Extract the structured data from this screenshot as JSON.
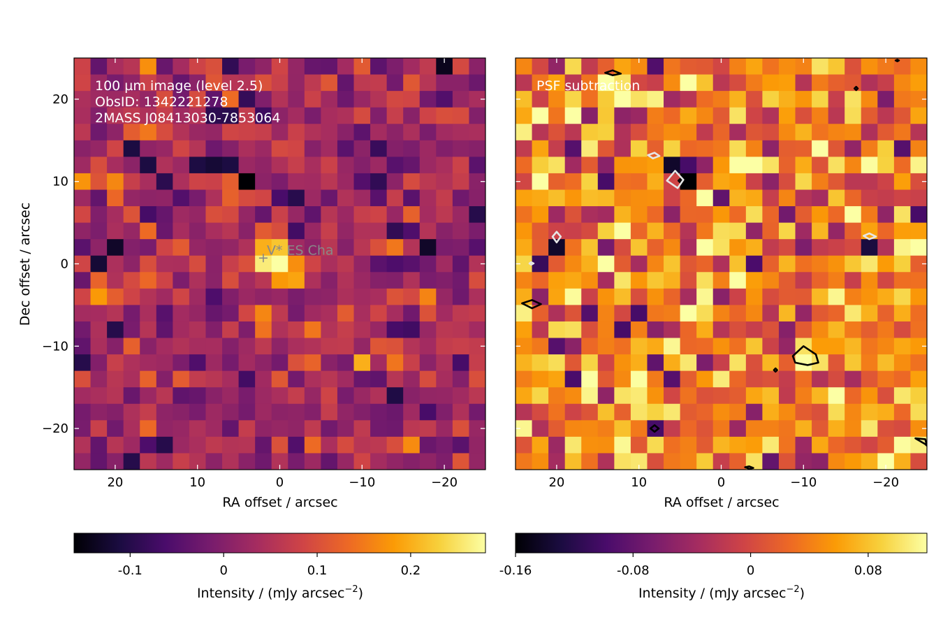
{
  "colormap": {
    "name": "inferno",
    "stops": [
      "#000004",
      "#1b0c41",
      "#4a0c6b",
      "#781c6d",
      "#a52c60",
      "#cf4446",
      "#ed6925",
      "#fb9b06",
      "#f7d13d",
      "#fcffa4"
    ]
  },
  "chart_data": [
    {
      "type": "heatmap",
      "panel": "left",
      "xlabel": "RA offset / arcsec",
      "ylabel": "Dec offset / arcsec",
      "xlim": [
        25,
        -25
      ],
      "ylim": [
        -25,
        25
      ],
      "xticks": [
        20,
        10,
        0,
        -10,
        -20
      ],
      "yticks": [
        -20,
        -10,
        0,
        10,
        20
      ],
      "xtick_labels": [
        "20",
        "10",
        "0",
        "−10",
        "−20"
      ],
      "ytick_labels": [
        "−20",
        "−10",
        "0",
        "10",
        "20"
      ],
      "annotation_lines": [
        "100 µm image (level 2.5)",
        "ObsID: 1342221278",
        "2MASS J08413030-7853064"
      ],
      "source_marker": {
        "label": "V* ES Cha",
        "ra": 2,
        "dec": 0.7
      },
      "pixel_size_arcsec": 2.0,
      "grid_cols": 25,
      "grid_rows": 25,
      "vmin": -0.16,
      "vmax": 0.28,
      "noise_mean": 0.03,
      "noise_sigma": 0.05,
      "random_seed": 1342221278,
      "hot_pixels": [
        {
          "ra": 0,
          "dec": 0,
          "value": 0.28
        },
        {
          "ra": 2,
          "dec": 0,
          "value": 0.26
        },
        {
          "ra": 0,
          "dec": 2,
          "value": 0.22
        },
        {
          "ra": 2,
          "dec": 2,
          "value": 0.2
        },
        {
          "ra": -2,
          "dec": 0,
          "value": 0.17
        },
        {
          "ra": -2,
          "dec": -2,
          "value": 0.19
        },
        {
          "ra": 0,
          "dec": -2,
          "value": 0.18
        },
        {
          "ra": 4,
          "dec": 0,
          "value": 0.1
        },
        {
          "ra": -10,
          "dec": -12,
          "value": 0.2
        },
        {
          "ra": 22,
          "dec": -4,
          "value": 0.18
        },
        {
          "ra": -18,
          "dec": -4,
          "value": 0.16
        }
      ],
      "cold_pixels": [
        {
          "ra": 5,
          "dec": 10,
          "value": -0.16
        },
        {
          "ra": 8,
          "dec": 13,
          "value": -0.12
        },
        {
          "ra": 6,
          "dec": 12,
          "value": -0.11
        },
        {
          "ra": 20,
          "dec": 3,
          "value": -0.13
        },
        {
          "ra": -17,
          "dec": 3,
          "value": -0.13
        },
        {
          "ra": 22,
          "dec": 0,
          "value": -0.12
        },
        {
          "ra": -20,
          "dec": 24,
          "value": -0.14
        },
        {
          "ra": 18,
          "dec": 15,
          "value": -0.11
        },
        {
          "ra": 16,
          "dec": 12,
          "value": -0.11
        },
        {
          "ra": 24,
          "dec": -11,
          "value": -0.1
        },
        {
          "ra": 20,
          "dec": -8,
          "value": -0.1
        },
        {
          "ra": 14,
          "dec": -21,
          "value": -0.1
        },
        {
          "ra": 18,
          "dec": -24,
          "value": -0.1
        },
        {
          "ra": -24,
          "dec": 7,
          "value": -0.1
        }
      ],
      "colorbar": {
        "label_main": "Intensity / (mJy arcsec",
        "label_exp": "−2",
        "label_close": ")",
        "ticks": [
          -0.1,
          0,
          0.1,
          0.2
        ],
        "tick_labels": [
          "-0.1",
          "0",
          "0.1",
          "0.2"
        ]
      }
    },
    {
      "type": "heatmap",
      "panel": "right",
      "xlabel": "RA offset / arcsec",
      "xlim": [
        25,
        -25
      ],
      "ylim": [
        -25,
        25
      ],
      "xticks": [
        20,
        10,
        0,
        -10,
        -20
      ],
      "yticks": [
        -20,
        -10,
        0,
        10,
        20
      ],
      "xtick_labels": [
        "20",
        "10",
        "0",
        "−10",
        "−20"
      ],
      "annotation_lines": [
        "PSF subtraction"
      ],
      "pixel_size_arcsec": 2.0,
      "grid_cols": 25,
      "grid_rows": 25,
      "vmin": -0.16,
      "vmax": 0.12,
      "noise_mean": 0.035,
      "noise_sigma": 0.045,
      "random_seed": 78530640,
      "hot_pixels": [
        {
          "ra": -10,
          "dec": -12,
          "value": 0.12
        },
        {
          "ra": -12,
          "dec": -12,
          "value": 0.1
        },
        {
          "ra": -10,
          "dec": -10,
          "value": 0.1
        },
        {
          "ra": 24,
          "dec": -5,
          "value": 0.11
        },
        {
          "ra": -24,
          "dec": -22,
          "value": 0.11
        },
        {
          "ra": 13,
          "dec": 23,
          "value": 0.1
        },
        {
          "ra": -16,
          "dec": 21,
          "value": 0.1
        },
        {
          "ra": 10,
          "dec": 20,
          "value": 0.1
        },
        {
          "ra": -4,
          "dec": -24,
          "value": 0.1
        },
        {
          "ra": 12,
          "dec": -24,
          "value": 0.1
        },
        {
          "ra": 8,
          "dec": -18,
          "value": 0.09
        },
        {
          "ra": 16,
          "dec": 10,
          "value": 0.09
        },
        {
          "ra": -22,
          "dec": 6,
          "value": 0.1
        },
        {
          "ra": 8,
          "dec": -20,
          "value": 0.1
        }
      ],
      "cold_pixels": [
        {
          "ra": 5,
          "dec": 10,
          "value": -0.16
        },
        {
          "ra": 7,
          "dec": 12,
          "value": -0.14
        },
        {
          "ra": 5,
          "dec": 12,
          "value": -0.1
        },
        {
          "ra": 20,
          "dec": 3,
          "value": -0.14
        },
        {
          "ra": -18,
          "dec": 3,
          "value": -0.13
        },
        {
          "ra": 22,
          "dec": 0,
          "value": -0.11
        },
        {
          "ra": 14,
          "dec": 11,
          "value": -0.1
        },
        {
          "ra": 18,
          "dec": 15,
          "value": -0.09
        },
        {
          "ra": 10,
          "dec": -5,
          "value": -0.1
        },
        {
          "ra": 12,
          "dec": -8,
          "value": -0.1
        },
        {
          "ra": -24,
          "dec": 6,
          "value": -0.1
        },
        {
          "ra": 8,
          "dec": -19,
          "value": -0.1
        },
        {
          "ra": 6,
          "dec": -14,
          "value": -0.09
        },
        {
          "ra": -22,
          "dec": 14,
          "value": -0.09
        },
        {
          "ra": 20,
          "dec": -10,
          "value": -0.09
        }
      ],
      "contours": [
        {
          "color": "black",
          "points": [
            [
              -8.7,
              -11.2
            ],
            [
              -10,
              -10
            ],
            [
              -11.5,
              -11
            ],
            [
              -11.8,
              -12
            ],
            [
              -10.5,
              -12.3
            ],
            [
              -9,
              -12
            ]
          ]
        },
        {
          "color": "black",
          "points": [
            [
              24.2,
              -4.8
            ],
            [
              23,
              -4.4
            ],
            [
              21.9,
              -4.9
            ],
            [
              23,
              -5.4
            ]
          ]
        },
        {
          "color": "black",
          "points": [
            [
              14.1,
              23.2
            ],
            [
              13.2,
              22.9
            ],
            [
              12.2,
              23.1
            ],
            [
              13.2,
              23.5
            ]
          ]
        },
        {
          "color": "black",
          "points": [
            [
              8.6,
              -20
            ],
            [
              8.1,
              -19.6
            ],
            [
              7.6,
              -20
            ],
            [
              8.1,
              -20.4
            ]
          ]
        },
        {
          "color": "black",
          "points": [
            [
              -23.6,
              -21.2
            ],
            [
              -24.8,
              -21.9
            ],
            [
              -25,
              -22.1
            ],
            [
              -24.8,
              -21.3
            ]
          ]
        },
        {
          "color": "black",
          "points": [
            [
              -2.9,
              -24.7
            ],
            [
              -3.4,
              -24.6
            ],
            [
              -3.9,
              -24.8
            ],
            [
              -3.4,
              -24.9
            ]
          ]
        },
        {
          "color": "black",
          "points": [
            [
              -16.4,
              21.5
            ],
            [
              -16.6,
              21.3
            ],
            [
              -16.4,
              21.1
            ],
            [
              -16.2,
              21.3
            ]
          ]
        },
        {
          "color": "black",
          "points": [
            [
              -6.6,
              -13.1
            ],
            [
              -6.8,
              -12.9
            ],
            [
              -6.6,
              -12.7
            ],
            [
              -6.4,
              -12.9
            ]
          ]
        },
        {
          "color": "black",
          "points": [
            [
              5.2,
              10.1
            ],
            [
              5.0,
              10.3
            ],
            [
              4.8,
              10.1
            ],
            [
              5.0,
              9.9
            ]
          ]
        },
        {
          "color": "black",
          "points": [
            [
              -21.2,
              24.7
            ],
            [
              -21.4,
              24.8
            ],
            [
              -21.6,
              24.7
            ],
            [
              -21.4,
              24.6
            ]
          ]
        },
        {
          "color": "#e6e6e6",
          "points": [
            [
              6.6,
              10.1
            ],
            [
              5.6,
              11.3
            ],
            [
              4.6,
              10.2
            ],
            [
              5.3,
              9.2
            ]
          ]
        },
        {
          "color": "#e6e6e6",
          "points": [
            [
              20.5,
              3.3
            ],
            [
              20,
              3.9
            ],
            [
              19.5,
              3.3
            ],
            [
              20,
              2.6
            ]
          ]
        },
        {
          "color": "#e6e6e6",
          "points": [
            [
              8.9,
              13.2
            ],
            [
              8.1,
              13.5
            ],
            [
              7.5,
              13.1
            ],
            [
              8.3,
              12.8
            ]
          ]
        },
        {
          "color": "#e6e6e6",
          "points": [
            [
              -17.3,
              3.4
            ],
            [
              -18,
              3.7
            ],
            [
              -18.8,
              3.3
            ],
            [
              -18,
              3
            ]
          ]
        },
        {
          "color": "#e6e6e6",
          "points": [
            [
              23.3,
              0.05
            ],
            [
              23.1,
              0.2
            ],
            [
              22.8,
              0.05
            ],
            [
              23.1,
              -0.1
            ]
          ]
        }
      ],
      "colorbar": {
        "label_main": "Intensity / (mJy arcsec",
        "label_exp": "−2",
        "label_close": ")",
        "ticks": [
          -0.16,
          -0.08,
          0,
          0.08
        ],
        "tick_labels": [
          "-0.16",
          "-0.08",
          "0",
          "0.08"
        ]
      }
    }
  ]
}
